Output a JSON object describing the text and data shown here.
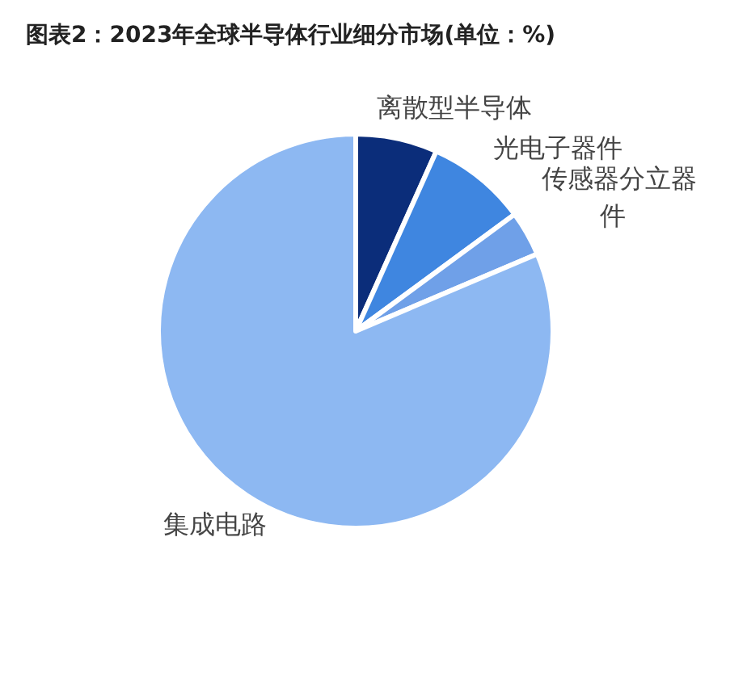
{
  "chart_data": {
    "type": "pie",
    "title": "图表2：2023年全球半导体行业细分市场(单位：%)",
    "categories": [
      "离散型半导体",
      "光电子器件",
      "传感器分立器件",
      "集成电路"
    ],
    "values": [
      6.7,
      8.2,
      3.7,
      81.4
    ],
    "colors": [
      "#0b2d7a",
      "#3f86e0",
      "#6fa0e8",
      "#8db8f2"
    ]
  }
}
